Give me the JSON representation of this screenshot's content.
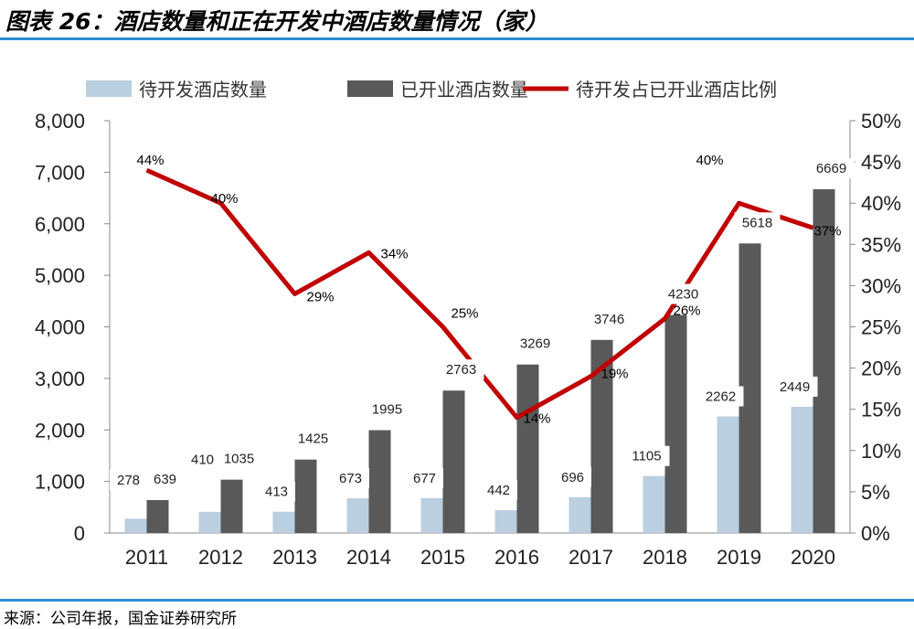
{
  "header": {
    "title": "图表 26：酒店数量和正在开发中酒店数量情况（家）"
  },
  "footer": {
    "source": "来源：公司年报，国金证券研究所"
  },
  "chart_data": {
    "type": "bar",
    "categories": [
      "2011",
      "2012",
      "2013",
      "2014",
      "2015",
      "2016",
      "2017",
      "2018",
      "2019",
      "2020"
    ],
    "series": [
      {
        "name": "待开发酒店数量",
        "type": "bar",
        "axis": "left",
        "color": "#bacfe0",
        "values": [
          278,
          410,
          413,
          673,
          677,
          442,
          696,
          1105,
          2262,
          2449
        ]
      },
      {
        "name": "已开业酒店数量",
        "type": "bar",
        "axis": "left",
        "color": "#595959",
        "values": [
          639,
          1035,
          1425,
          1995,
          2763,
          3269,
          3746,
          4230,
          5618,
          6669
        ]
      },
      {
        "name": "待开发占已开业酒店比例",
        "type": "line",
        "axis": "right",
        "color": "#c00000",
        "values": [
          0.44,
          0.4,
          0.29,
          0.34,
          0.25,
          0.14,
          0.19,
          0.26,
          0.4,
          0.37
        ],
        "labels": [
          "44%",
          "40%",
          "29%",
          "34%",
          "25%",
          "14%",
          "19%",
          "26%",
          "40%",
          "37%"
        ]
      }
    ],
    "y_left": {
      "lim": [
        0,
        8000
      ],
      "ticks": [
        0,
        1000,
        2000,
        3000,
        4000,
        5000,
        6000,
        7000,
        8000
      ],
      "tick_labels": [
        "0",
        "1,000",
        "2,000",
        "3,000",
        "4,000",
        "5,000",
        "6,000",
        "7,000",
        "8,000"
      ]
    },
    "y_right": {
      "lim": [
        0,
        0.5
      ],
      "ticks": [
        0,
        0.05,
        0.1,
        0.15,
        0.2,
        0.25,
        0.3,
        0.35,
        0.4,
        0.45,
        0.5
      ],
      "tick_labels": [
        "0%",
        "5%",
        "10%",
        "15%",
        "20%",
        "25%",
        "30%",
        "35%",
        "40%",
        "45%",
        "50%"
      ]
    },
    "legend": "top",
    "grid": false
  }
}
